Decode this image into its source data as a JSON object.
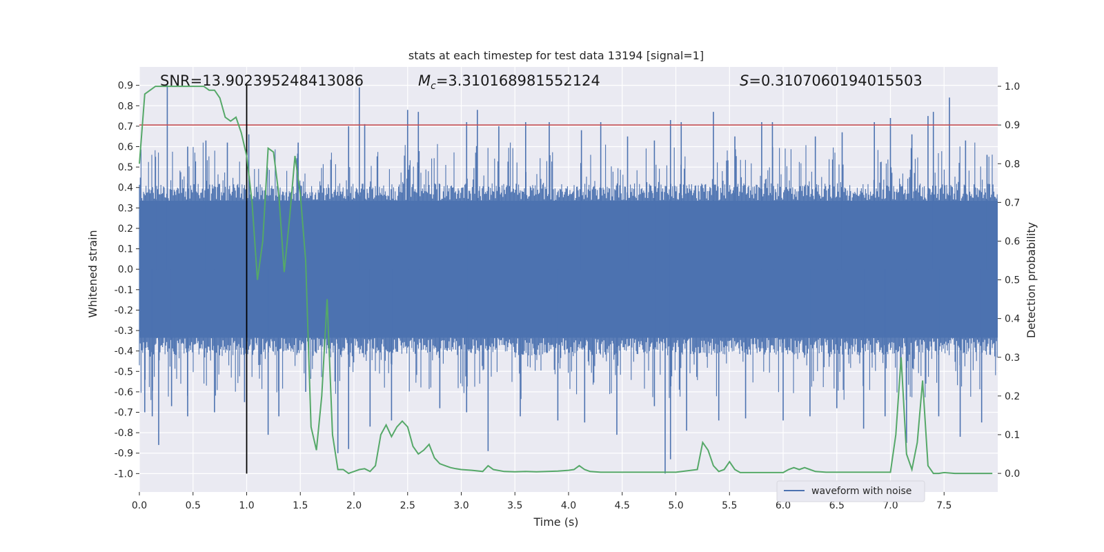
{
  "chart_data": {
    "type": "line",
    "title": "stats at each timestep for test data 13194 [signal=1]",
    "xlabel": "Time (s)",
    "ylabel": "Whitened strain",
    "y2label": "Detection probability",
    "xlim": [
      0.0,
      8.0
    ],
    "ylim": [
      -1.09,
      0.99
    ],
    "y2lim": [
      -0.048,
      1.05
    ],
    "grid": true,
    "x_ticks": [
      "0.0",
      "0.5",
      "1.0",
      "1.5",
      "2.0",
      "2.5",
      "3.0",
      "3.5",
      "4.0",
      "4.5",
      "5.0",
      "5.5",
      "6.0",
      "6.5",
      "7.0",
      "7.5"
    ],
    "y_ticks": [
      "0.9",
      "0.8",
      "0.7",
      "0.6",
      "0.5",
      "0.4",
      "0.3",
      "0.2",
      "0.1",
      "0.0",
      "-0.1",
      "-0.2",
      "-0.3",
      "-0.4",
      "-0.5",
      "-0.6",
      "-0.7",
      "-0.8",
      "-0.9",
      "-1.0"
    ],
    "y2_ticks": [
      "1.0",
      "0.9",
      "0.8",
      "0.7",
      "0.6",
      "0.5",
      "0.4",
      "0.3",
      "0.2",
      "0.1",
      "0.0"
    ],
    "annotations": {
      "snr": "SNR=13.902395248413086",
      "mc_symbol": "M",
      "mc_sub": "c",
      "mc_value": "=3.310168981552124",
      "s_symbol": "S",
      "s_value": "=0.3107060194015503"
    },
    "threshold_probability": 0.9,
    "marker_time": 1.0,
    "legend": {
      "label": "waveform with noise",
      "placement": "lower-right"
    },
    "colors": {
      "waveform": "#4c72b0",
      "probability": "#55a868",
      "threshold": "#c44e52",
      "marker": "#000000",
      "background": "#eaeaf2",
      "grid": "#ffffff"
    },
    "series": [
      {
        "name": "waveform with noise",
        "axis": "left",
        "spikes_up": [
          [
            0.26,
            0.9
          ],
          [
            0.15,
            0.55
          ],
          [
            0.45,
            0.6
          ],
          [
            0.62,
            0.63
          ],
          [
            0.82,
            0.62
          ],
          [
            1.02,
            0.66
          ],
          [
            1.48,
            0.62
          ],
          [
            1.95,
            0.7
          ],
          [
            2.05,
            0.89
          ],
          [
            2.1,
            0.71
          ],
          [
            2.5,
            0.78
          ],
          [
            2.6,
            0.77
          ],
          [
            3.05,
            0.72
          ],
          [
            3.15,
            0.78
          ],
          [
            3.35,
            0.7
          ],
          [
            3.6,
            0.72
          ],
          [
            3.82,
            0.72
          ],
          [
            4.12,
            0.68
          ],
          [
            4.3,
            0.72
          ],
          [
            4.55,
            0.65
          ],
          [
            4.8,
            0.63
          ],
          [
            4.95,
            0.73
          ],
          [
            5.05,
            0.72
          ],
          [
            5.35,
            0.77
          ],
          [
            5.55,
            0.65
          ],
          [
            5.8,
            0.72
          ],
          [
            5.9,
            0.72
          ],
          [
            6.3,
            0.65
          ],
          [
            6.55,
            0.67
          ],
          [
            6.85,
            0.72
          ],
          [
            7.0,
            0.74
          ],
          [
            7.2,
            0.66
          ],
          [
            7.35,
            0.75
          ],
          [
            7.4,
            0.77
          ],
          [
            7.55,
            0.84
          ],
          [
            7.7,
            0.63
          ],
          [
            7.9,
            0.56
          ]
        ],
        "spikes_down": [
          [
            0.05,
            -0.7
          ],
          [
            0.12,
            -0.72
          ],
          [
            0.18,
            -0.86
          ],
          [
            0.3,
            -0.67
          ],
          [
            0.45,
            -0.72
          ],
          [
            0.7,
            -0.7
          ],
          [
            0.98,
            -0.65
          ],
          [
            1.2,
            -0.81
          ],
          [
            1.3,
            -0.72
          ],
          [
            1.55,
            -0.6
          ],
          [
            1.85,
            -0.9
          ],
          [
            1.95,
            -0.88
          ],
          [
            2.15,
            -0.77
          ],
          [
            2.35,
            -0.74
          ],
          [
            2.8,
            -0.68
          ],
          [
            3.05,
            -0.7
          ],
          [
            3.25,
            -0.89
          ],
          [
            3.55,
            -0.72
          ],
          [
            3.9,
            -0.74
          ],
          [
            4.15,
            -0.75
          ],
          [
            4.45,
            -0.81
          ],
          [
            4.8,
            -0.67
          ],
          [
            4.9,
            -1.0
          ],
          [
            4.95,
            -0.93
          ],
          [
            5.1,
            -0.79
          ],
          [
            5.4,
            -0.74
          ],
          [
            5.65,
            -0.73
          ],
          [
            6.0,
            -0.74
          ],
          [
            6.25,
            -0.72
          ],
          [
            6.5,
            -0.68
          ],
          [
            6.75,
            -0.78
          ],
          [
            6.95,
            -0.72
          ],
          [
            7.15,
            -0.85
          ],
          [
            7.45,
            -0.72
          ],
          [
            7.65,
            -0.82
          ],
          [
            7.85,
            -0.75
          ]
        ]
      },
      {
        "name": "",
        "axis": "right",
        "x": [
          0.0,
          0.05,
          0.1,
          0.15,
          0.2,
          0.3,
          0.4,
          0.5,
          0.55,
          0.6,
          0.65,
          0.7,
          0.75,
          0.8,
          0.85,
          0.9,
          0.95,
          1.0,
          1.05,
          1.1,
          1.15,
          1.2,
          1.25,
          1.3,
          1.35,
          1.4,
          1.45,
          1.5,
          1.55,
          1.6,
          1.65,
          1.7,
          1.75,
          1.8,
          1.85,
          1.9,
          1.95,
          2.0,
          2.05,
          2.1,
          2.15,
          2.2,
          2.25,
          2.3,
          2.35,
          2.4,
          2.45,
          2.5,
          2.55,
          2.6,
          2.65,
          2.7,
          2.75,
          2.8,
          2.85,
          2.9,
          2.95,
          3.0,
          3.1,
          3.2,
          3.25,
          3.3,
          3.4,
          3.5,
          3.6,
          3.7,
          3.8,
          3.9,
          4.0,
          4.05,
          4.1,
          4.15,
          4.2,
          4.3,
          4.5,
          4.8,
          5.0,
          5.2,
          5.25,
          5.3,
          5.35,
          5.4,
          5.45,
          5.5,
          5.55,
          5.6,
          5.65,
          5.7,
          5.8,
          6.0,
          6.05,
          6.1,
          6.15,
          6.2,
          6.25,
          6.3,
          6.4,
          6.5,
          6.8,
          6.9,
          7.0,
          7.05,
          7.1,
          7.15,
          7.2,
          7.25,
          7.3,
          7.35,
          7.4,
          7.45,
          7.5,
          7.6,
          7.7,
          7.8,
          7.95
        ],
        "y": [
          0.8,
          0.98,
          0.99,
          1.0,
          1.0,
          1.0,
          1.0,
          1.0,
          1.0,
          1.0,
          0.99,
          0.99,
          0.97,
          0.92,
          0.91,
          0.92,
          0.88,
          0.82,
          0.7,
          0.5,
          0.6,
          0.84,
          0.83,
          0.72,
          0.52,
          0.66,
          0.82,
          0.72,
          0.55,
          0.12,
          0.06,
          0.2,
          0.45,
          0.1,
          0.01,
          0.01,
          0.0,
          0.005,
          0.01,
          0.012,
          0.005,
          0.02,
          0.1,
          0.125,
          0.095,
          0.12,
          0.135,
          0.12,
          0.07,
          0.05,
          0.06,
          0.075,
          0.04,
          0.025,
          0.02,
          0.015,
          0.012,
          0.01,
          0.008,
          0.005,
          0.02,
          0.01,
          0.005,
          0.004,
          0.005,
          0.004,
          0.005,
          0.006,
          0.008,
          0.01,
          0.02,
          0.01,
          0.005,
          0.003,
          0.003,
          0.003,
          0.003,
          0.01,
          0.08,
          0.06,
          0.02,
          0.005,
          0.01,
          0.03,
          0.01,
          0.002,
          0.002,
          0.002,
          0.002,
          0.002,
          0.01,
          0.015,
          0.01,
          0.015,
          0.01,
          0.005,
          0.003,
          0.003,
          0.003,
          0.003,
          0.003,
          0.1,
          0.3,
          0.05,
          0.01,
          0.08,
          0.24,
          0.02,
          0.0,
          0.0,
          0.002,
          0.0,
          0.0,
          0.0,
          0.0
        ]
      }
    ]
  }
}
